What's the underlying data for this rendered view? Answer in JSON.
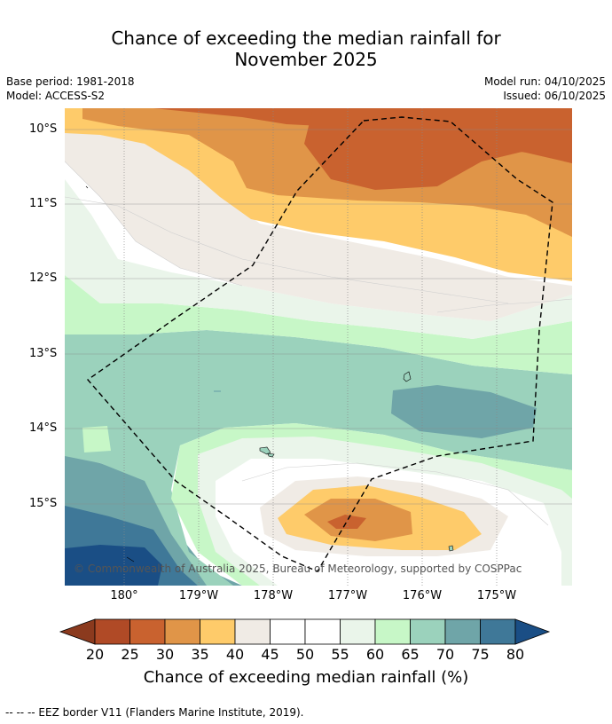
{
  "title_line1": "Chance of exceeding the median rainfall for",
  "title_line2": "November 2025",
  "base_period": "Base period: 1981-2018",
  "model": "Model: ACCESS-S2",
  "model_run": "Model run: 04/10/2025",
  "issued": "Issued: 06/10/2025",
  "lat_labels": [
    "10°S",
    "11°S",
    "12°S",
    "13°S",
    "14°S",
    "15°S"
  ],
  "lon_labels": [
    "180°",
    "179°W",
    "178°W",
    "177°W",
    "176°W",
    "175°W"
  ],
  "copyright": "© Commonwealth of Australia 2025, Bureau of Meteorology, supported by COSPPac",
  "colorbar": {
    "ticks": [
      "20",
      "25",
      "30",
      "35",
      "40",
      "45",
      "50",
      "55",
      "60",
      "65",
      "70",
      "75",
      "80"
    ],
    "colors": [
      "#8b3a1e",
      "#b04a26",
      "#c9622f",
      "#e09548",
      "#fecb6a",
      "#f0ebe5",
      "#ffffff",
      "#ffffff",
      "#eaf5ea",
      "#c7f7c7",
      "#9bd2bc",
      "#6fa5a8",
      "#3f7898",
      "#1a4e85"
    ],
    "label": "Chance of exceeding median rainfall (%)"
  },
  "footnote": "--  --  -- EEZ border V11 (Flanders Marine Institute, 2019)."
}
